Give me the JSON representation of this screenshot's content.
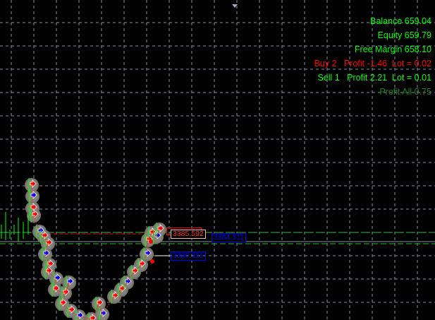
{
  "account": {
    "balance": "Balance 659.04",
    "equity": "Equity 659.79",
    "free_margin": "Free Margin 658.10",
    "buy": "Buy 2   Profit -1.46  Lot = 0.02",
    "sell": "Sell 1   Profit 2.21  Lot = 0.01",
    "profit_all": "Profit All 0.75"
  },
  "price_labels": {
    "buy_price": "3385.592",
    "sell_price_hidden": "3384.311",
    "sell_price": "3380.351"
  },
  "colors": {
    "background": "#000000",
    "grid": "#8090a8",
    "profit_text": "#00ff00",
    "loss_text": "#ff0000",
    "profit_all_text": "#1e7d1e",
    "buy_line": "#ff0000",
    "sell_line": "#0000ff",
    "bid_line": "#8090a0"
  }
}
